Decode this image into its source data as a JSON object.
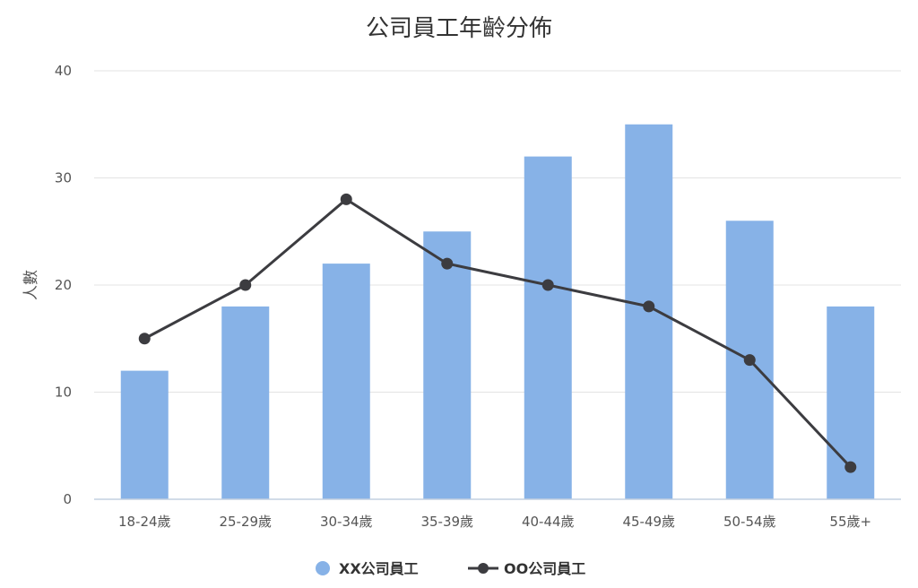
{
  "chart_data": {
    "type": "bar",
    "title": "公司員工年齡分佈",
    "xlabel": "",
    "ylabel": "人數",
    "ylim": [
      0,
      40
    ],
    "yticks": [
      0,
      10,
      20,
      30,
      40
    ],
    "grid": true,
    "legend_position": "bottom",
    "categories": [
      "18-24歲",
      "25-29歲",
      "30-34歲",
      "35-39歲",
      "40-44歲",
      "45-49歲",
      "50-54歲",
      "55歲+"
    ],
    "series": [
      {
        "name": "XX公司員工",
        "type": "bar",
        "color": "#87b2e7",
        "values": [
          12,
          18,
          22,
          25,
          32,
          35,
          26,
          18
        ]
      },
      {
        "name": "OO公司員工",
        "type": "line",
        "color": "#3c3c40",
        "values": [
          15,
          20,
          28,
          22,
          20,
          18,
          13,
          3
        ]
      }
    ]
  }
}
